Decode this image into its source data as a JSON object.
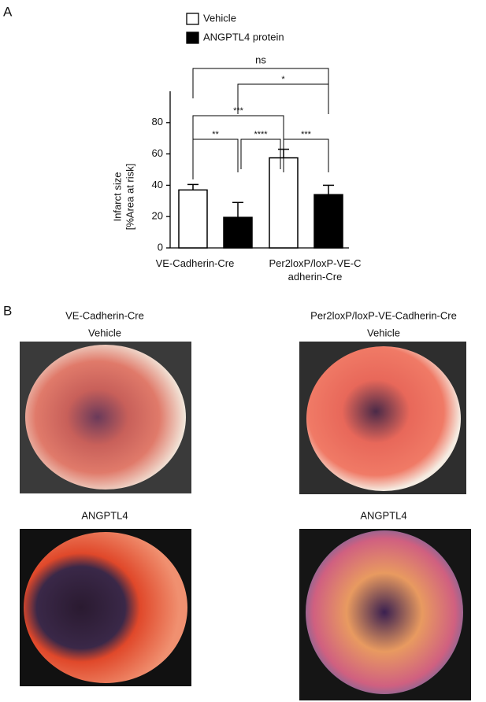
{
  "chart_data": {
    "type": "bar",
    "panel_label": "A",
    "y_label": [
      "Infarct size",
      "[%Area at risk]"
    ],
    "categories": [
      "VE-Cadherin-Cre",
      "Per2loxP/loxP-VE-Cadherin-Cre"
    ],
    "series": [
      {
        "name": "Vehicle",
        "color": "#ffffff",
        "values": [
          37,
          57.5
        ],
        "errors": [
          3.5,
          5.5
        ]
      },
      {
        "name": "ANGPTL4 protein",
        "color": "#000000",
        "values": [
          19.5,
          34
        ],
        "errors": [
          9.5,
          6
        ]
      }
    ],
    "ylim": [
      0,
      100
    ],
    "yticks": [
      0,
      20,
      40,
      60,
      80
    ],
    "annotations": [
      "**",
      "****",
      "***",
      "***",
      "*",
      "ns"
    ]
  },
  "panel_b": {
    "panel_label": "B",
    "columns": [
      {
        "genotype": "VE-Cadherin-Cre",
        "top": "Vehicle",
        "bottom": "ANGPTL4"
      },
      {
        "genotype": "Per2loxP/loxP-VE-Cadherin-Cre",
        "top": "Vehicle",
        "bottom": "ANGPTL4"
      }
    ]
  }
}
